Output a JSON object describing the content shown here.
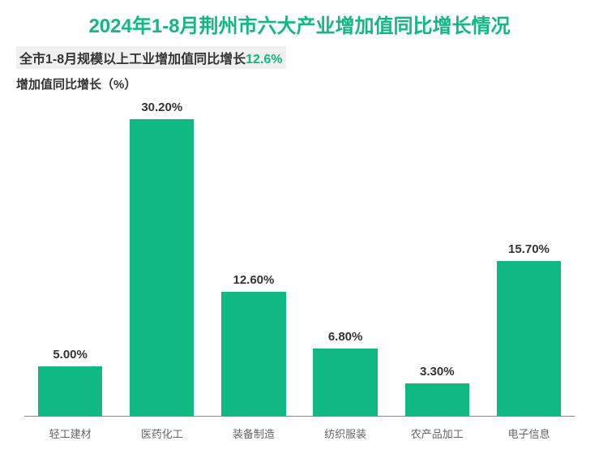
{
  "chart": {
    "type": "bar",
    "title": "2024年1-8月荆州市六大产业增加值同比增长情况",
    "title_fontsize": 24,
    "title_color": "#10b981",
    "subtitle_label": "全市1-8月规模以上工业增加值同比增长",
    "subtitle_value": "12.6%",
    "subtitle_bg": "#f0f0f0",
    "subtitle_label_color": "#333333",
    "subtitle_value_color": "#10b981",
    "subtitle_fontsize": 16,
    "y_axis_label": "增加值同比增长（%）",
    "y_axis_label_fontsize": 15,
    "y_axis_label_color": "#333333",
    "categories": [
      "轻工建材",
      "医药化工",
      "装备制造",
      "纺织服装",
      "农产品加工",
      "电子信息"
    ],
    "values": [
      5.0,
      30.2,
      12.6,
      6.8,
      3.3,
      15.7
    ],
    "value_labels": [
      "5.00%",
      "30.20%",
      "12.60%",
      "6.80%",
      "3.30%",
      "15.70%"
    ],
    "bar_color": "#10b981",
    "bar_width": 0.7,
    "value_label_fontsize": 15,
    "value_label_color": "#333333",
    "x_label_fontsize": 13,
    "x_label_color": "#666666",
    "ylim": [
      0,
      32
    ],
    "background_color": "#ffffff",
    "axis_color": "#888888"
  }
}
